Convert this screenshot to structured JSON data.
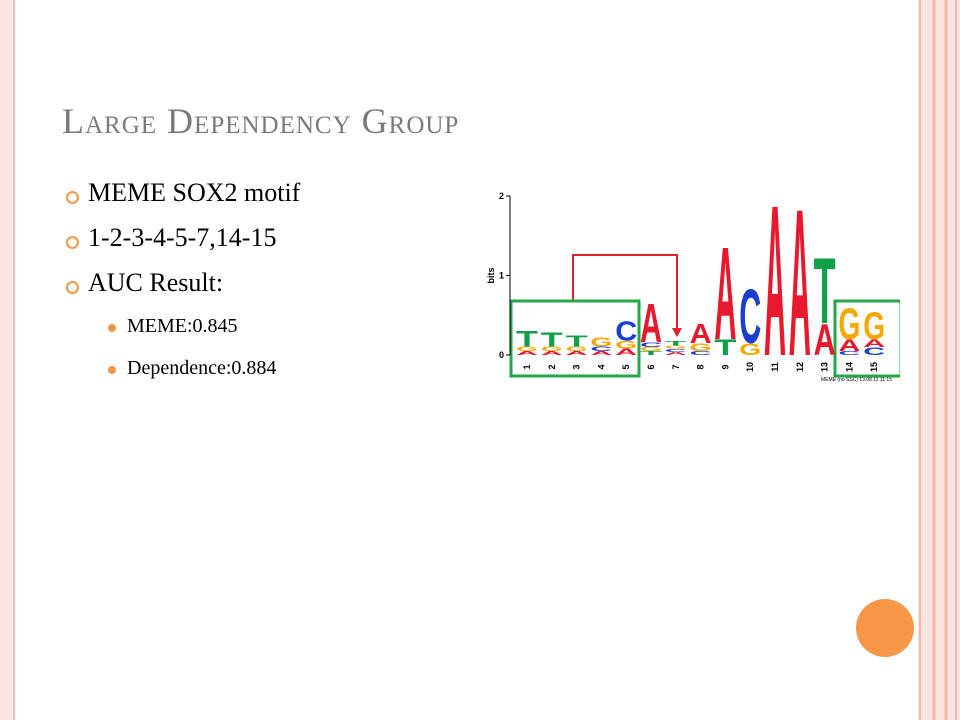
{
  "slide": {
    "title": "Large Dependency Group",
    "bullets": [
      "MEME SOX2 motif",
      "1-2-3-4-5-7,14-15",
      "AUC Result:"
    ],
    "sub_bullets": [
      "MEME:0.845",
      "Dependence:0.884"
    ],
    "logo": {
      "y_label": "bits",
      "ylim": [
        0,
        2
      ],
      "yticks": [
        0,
        1,
        2
      ],
      "footnote": "MEME (no SSC) 13.08.11 11:15",
      "colors": {
        "A": "#e8192c",
        "C": "#1a3fd0",
        "G": "#f6a800",
        "T": "#10a04a"
      },
      "columns": [
        {
          "position": "1",
          "letters": [
            {
              "letter": "A",
              "bits": 0.05
            },
            {
              "letter": "G",
              "bits": 0.06
            },
            {
              "letter": "T",
              "bits": 0.2
            }
          ]
        },
        {
          "position": "2",
          "letters": [
            {
              "letter": "A",
              "bits": 0.05
            },
            {
              "letter": "G",
              "bits": 0.06
            },
            {
              "letter": "T",
              "bits": 0.18
            }
          ]
        },
        {
          "position": "3",
          "letters": [
            {
              "letter": "A",
              "bits": 0.05
            },
            {
              "letter": "G",
              "bits": 0.06
            },
            {
              "letter": "T",
              "bits": 0.14
            }
          ]
        },
        {
          "position": "4",
          "letters": [
            {
              "letter": "A",
              "bits": 0.05
            },
            {
              "letter": "C",
              "bits": 0.06
            },
            {
              "letter": "G",
              "bits": 0.12
            }
          ]
        },
        {
          "position": "5",
          "letters": [
            {
              "letter": "A",
              "bits": 0.08
            },
            {
              "letter": "G",
              "bits": 0.1
            },
            {
              "letter": "C",
              "bits": 0.25
            }
          ]
        },
        {
          "position": "6",
          "letters": [
            {
              "letter": "T",
              "bits": 0.05
            },
            {
              "letter": "G",
              "bits": 0.05
            },
            {
              "letter": "C",
              "bits": 0.06
            },
            {
              "letter": "A",
              "bits": 0.5
            }
          ]
        },
        {
          "position": "7",
          "letters": [
            {
              "letter": "A",
              "bits": 0.04
            },
            {
              "letter": "C",
              "bits": 0.04
            },
            {
              "letter": "G",
              "bits": 0.04
            },
            {
              "letter": "T",
              "bits": 0.06
            }
          ]
        },
        {
          "position": "8",
          "letters": [
            {
              "letter": "C",
              "bits": 0.05
            },
            {
              "letter": "G",
              "bits": 0.1
            },
            {
              "letter": "A",
              "bits": 0.25
            }
          ]
        },
        {
          "position": "9",
          "letters": [
            {
              "letter": "T",
              "bits": 0.2
            },
            {
              "letter": "A",
              "bits": 1.2
            }
          ]
        },
        {
          "position": "10",
          "letters": [
            {
              "letter": "G",
              "bits": 0.15
            },
            {
              "letter": "C",
              "bits": 0.7
            }
          ]
        },
        {
          "position": "11",
          "letters": [
            {
              "letter": "A",
              "bits": 1.95
            }
          ]
        },
        {
          "position": "12",
          "letters": [
            {
              "letter": "A",
              "bits": 1.9
            }
          ]
        },
        {
          "position": "13",
          "letters": [
            {
              "letter": "A",
              "bits": 0.4
            },
            {
              "letter": "T",
              "bits": 0.85
            }
          ]
        },
        {
          "position": "14",
          "letters": [
            {
              "letter": "C",
              "bits": 0.05
            },
            {
              "letter": "A",
              "bits": 0.15
            },
            {
              "letter": "G",
              "bits": 0.4
            }
          ]
        },
        {
          "position": "15",
          "letters": [
            {
              "letter": "C",
              "bits": 0.1
            },
            {
              "letter": "A",
              "bits": 0.1
            },
            {
              "letter": "G",
              "bits": 0.35
            }
          ]
        }
      ]
    }
  }
}
